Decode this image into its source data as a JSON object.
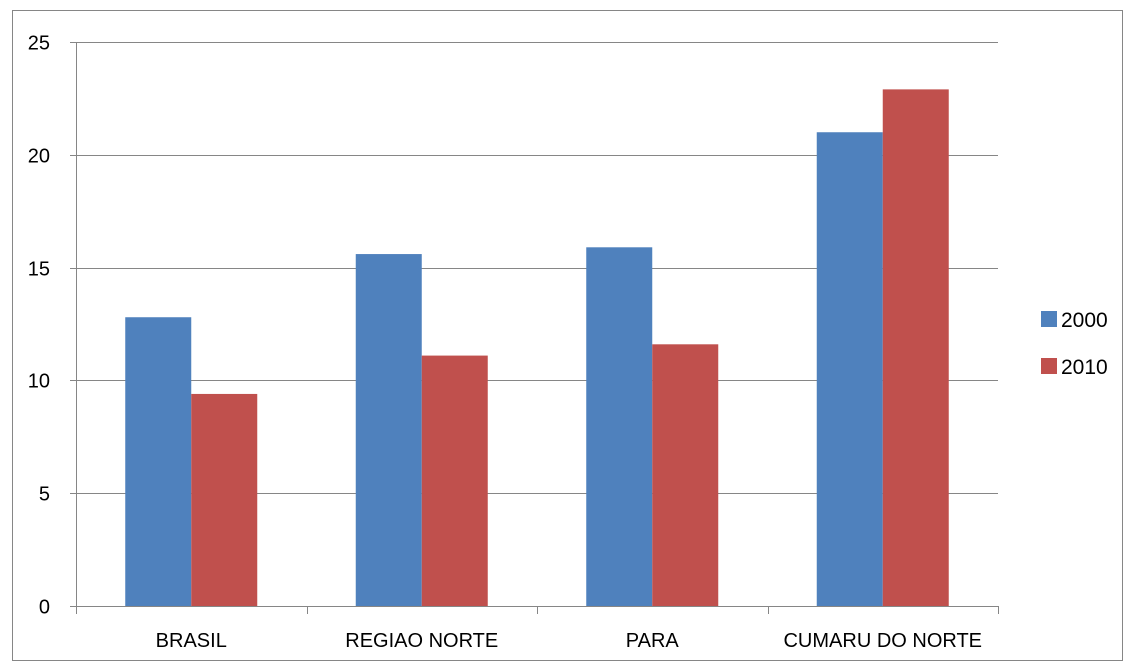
{
  "chart_data": {
    "type": "bar",
    "title": "",
    "xlabel": "",
    "ylabel": "",
    "categories": [
      "BRASIL",
      "REGIAO NORTE",
      "PARA",
      "CUMARU DO NORTE"
    ],
    "series": [
      {
        "name": "2000",
        "values": [
          12.8,
          15.6,
          15.9,
          21.0
        ],
        "color": "#4F81BD"
      },
      {
        "name": "2010",
        "values": [
          9.4,
          11.1,
          11.6,
          22.9
        ],
        "color": "#C0504D"
      }
    ],
    "ylim": [
      0,
      25
    ],
    "yticks": [
      0,
      5,
      10,
      15,
      20,
      25
    ],
    "grid": true,
    "legend_position": "right"
  }
}
